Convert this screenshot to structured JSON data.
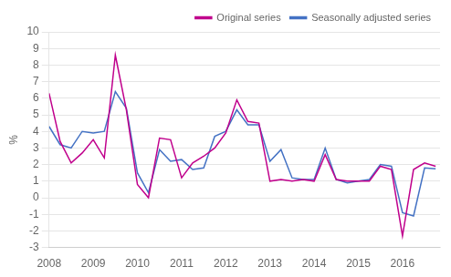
{
  "chart_data": {
    "type": "line",
    "x": [
      2008.0,
      2008.25,
      2008.5,
      2008.75,
      2009.0,
      2009.25,
      2009.5,
      2009.75,
      2010.0,
      2010.25,
      2010.5,
      2010.75,
      2011.0,
      2011.25,
      2011.5,
      2011.75,
      2012.0,
      2012.25,
      2012.5,
      2012.75,
      2013.0,
      2013.25,
      2013.5,
      2013.75,
      2014.0,
      2014.25,
      2014.5,
      2014.75,
      2015.0,
      2015.25,
      2015.5,
      2015.75,
      2016.0,
      2016.25,
      2016.5,
      2016.75
    ],
    "series": [
      {
        "name": "Original series",
        "color": "#c0008c",
        "values": [
          6.3,
          3.4,
          2.1,
          2.7,
          3.5,
          2.4,
          8.6,
          5.3,
          0.8,
          0.0,
          3.6,
          3.5,
          1.2,
          2.1,
          2.5,
          3.0,
          3.9,
          5.9,
          4.6,
          4.5,
          1.0,
          1.1,
          1.0,
          1.1,
          1.0,
          2.6,
          1.1,
          1.0,
          1.0,
          1.0,
          1.9,
          1.7,
          -2.3,
          1.7,
          2.1,
          1.9
        ]
      },
      {
        "name": "Seasonally adjusted series",
        "color": "#4472c4",
        "values": [
          4.3,
          3.2,
          3.0,
          4.0,
          3.9,
          4.0,
          6.4,
          5.4,
          1.5,
          0.3,
          2.9,
          2.2,
          2.3,
          1.7,
          1.8,
          3.7,
          4.0,
          5.3,
          4.4,
          4.4,
          2.2,
          2.9,
          1.2,
          1.1,
          1.1,
          3.0,
          1.1,
          0.9,
          1.0,
          1.1,
          2.0,
          1.9,
          -0.9,
          -1.1,
          1.8,
          1.75
        ]
      }
    ],
    "xlim": [
      2008.0,
      2016.85
    ],
    "ylim": [
      -3,
      10
    ],
    "xticks": [
      2008,
      2009,
      2010,
      2011,
      2012,
      2013,
      2014,
      2015,
      2016
    ],
    "yticks": [
      -3,
      -2,
      -1,
      0,
      1,
      2,
      3,
      4,
      5,
      6,
      7,
      8,
      9,
      10
    ],
    "ylabel": "%",
    "grid": "y",
    "legend": "upper right"
  }
}
